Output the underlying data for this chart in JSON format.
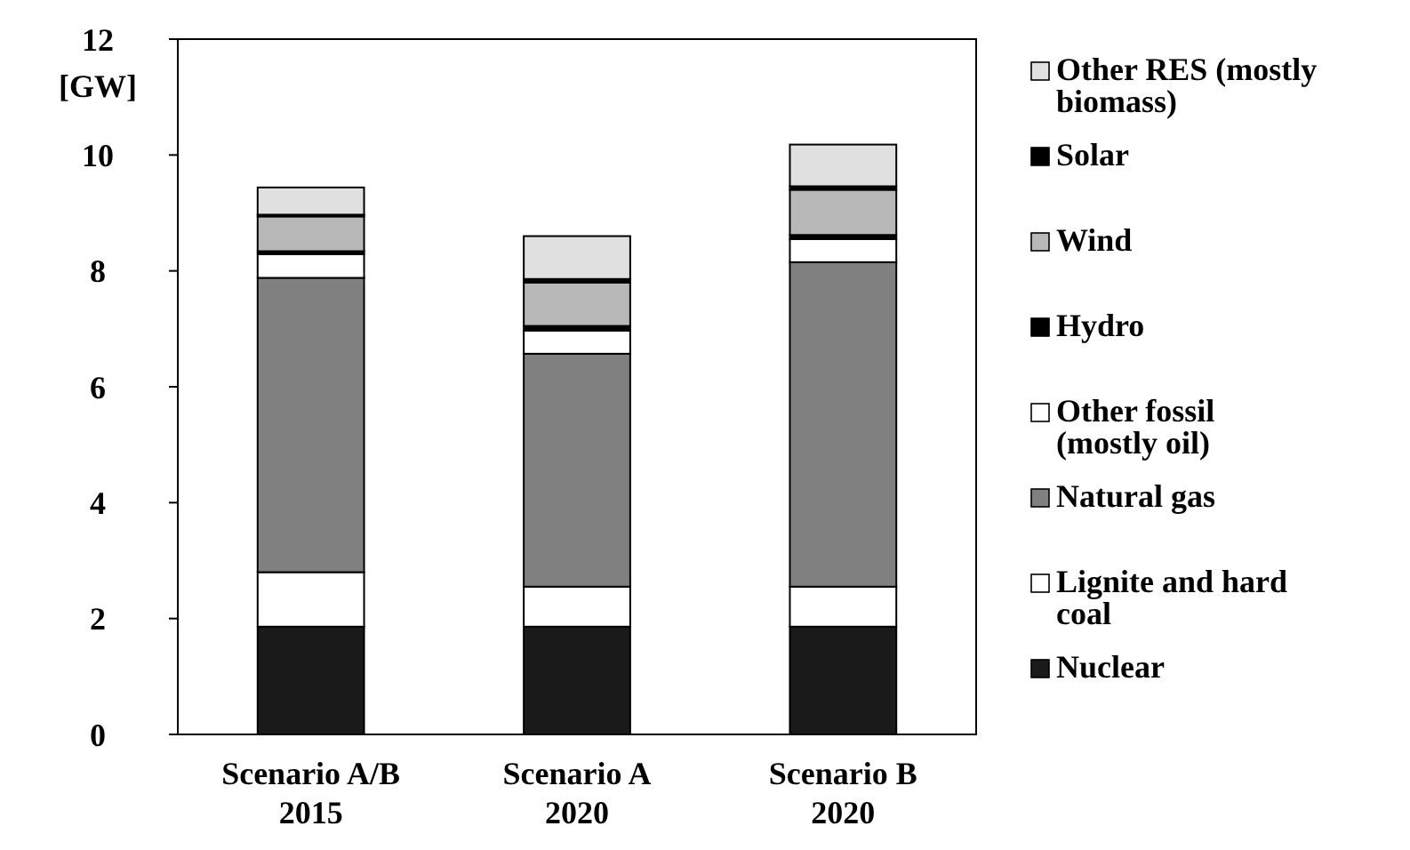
{
  "chart_data": {
    "type": "bar",
    "stacked": true,
    "ylabel": "[GW]",
    "categories": [
      "Scenario A/B\n2015",
      "Scenario A\n2020",
      "Scenario B\n2020"
    ],
    "ylim": [
      0,
      12
    ],
    "yticks": [
      0,
      2,
      4,
      6,
      8,
      10,
      12
    ],
    "grid": false,
    "legend": "right",
    "series": [
      {
        "name": "Nuclear",
        "color": "#1a1a1a",
        "values": [
          1.86,
          1.86,
          1.86
        ]
      },
      {
        "name": "Lignite and hard coal",
        "color": "#ffffff",
        "values": [
          0.94,
          0.69,
          0.69
        ]
      },
      {
        "name": "Natural gas",
        "color": "#808080",
        "values": [
          5.08,
          4.02,
          5.6
        ]
      },
      {
        "name": "Other fossil (mostly oil)",
        "color": "#ffffff",
        "values": [
          0.41,
          0.4,
          0.4
        ]
      },
      {
        "name": "Hydro",
        "color": "#000000",
        "values": [
          0.05,
          0.08,
          0.07
        ]
      },
      {
        "name": "Wind",
        "color": "#b8b8b8",
        "values": [
          0.6,
          0.75,
          0.78
        ]
      },
      {
        "name": "Solar",
        "color": "#000000",
        "values": [
          0.03,
          0.06,
          0.06
        ]
      },
      {
        "name": "Other RES (mostly biomass)",
        "color": "#e0e0e0",
        "values": [
          0.47,
          0.74,
          0.72
        ]
      }
    ]
  }
}
